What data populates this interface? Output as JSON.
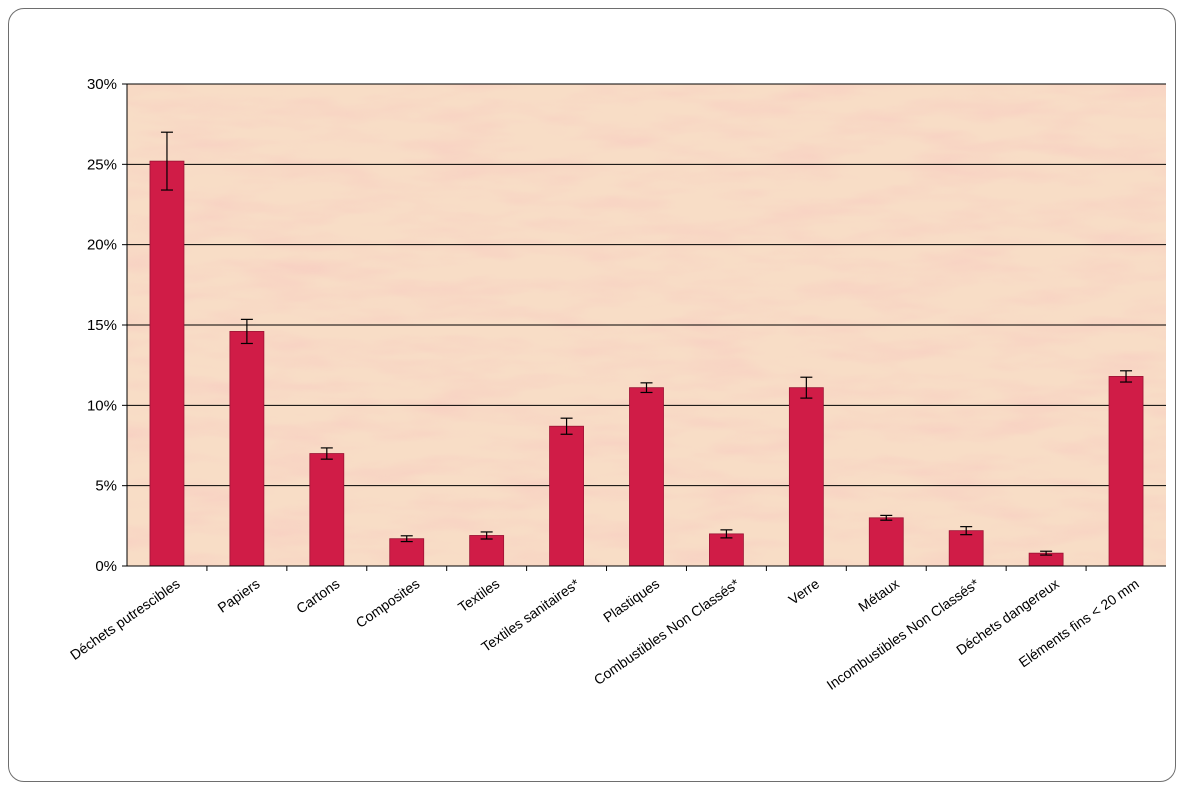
{
  "chart_data": {
    "type": "bar",
    "title": "",
    "xlabel": "",
    "ylabel": "",
    "categories": [
      "Déchets putrescibles",
      "Papiers",
      "Cartons",
      "Composites",
      "Textiles",
      "Textiles sanitaires*",
      "Plastiques",
      "Combustibles Non Classés*",
      "Verre",
      "Métaux",
      "Incombustibles Non Classés*",
      "Déchets dangereux",
      "Eléments fins < 20 mm"
    ],
    "values": [
      25.2,
      14.6,
      7.0,
      1.7,
      1.9,
      8.7,
      11.1,
      2.0,
      11.1,
      3.0,
      2.2,
      0.8,
      11.8
    ],
    "error": [
      1.8,
      0.75,
      0.35,
      0.18,
      0.22,
      0.5,
      0.3,
      0.25,
      0.65,
      0.15,
      0.25,
      0.12,
      0.35
    ],
    "ylim": [
      0,
      30
    ],
    "yticks": [
      "0%",
      "5%",
      "10%",
      "15%",
      "20%",
      "25%",
      "30%"
    ],
    "ytick_values": [
      0,
      5,
      10,
      15,
      20,
      25,
      30
    ],
    "grid": true,
    "legend": "none",
    "colors": {
      "bar": "#d01c47",
      "bar_edge": "#9a1233",
      "grid": "#000000",
      "plot_bg": "#f8ddc6"
    }
  }
}
